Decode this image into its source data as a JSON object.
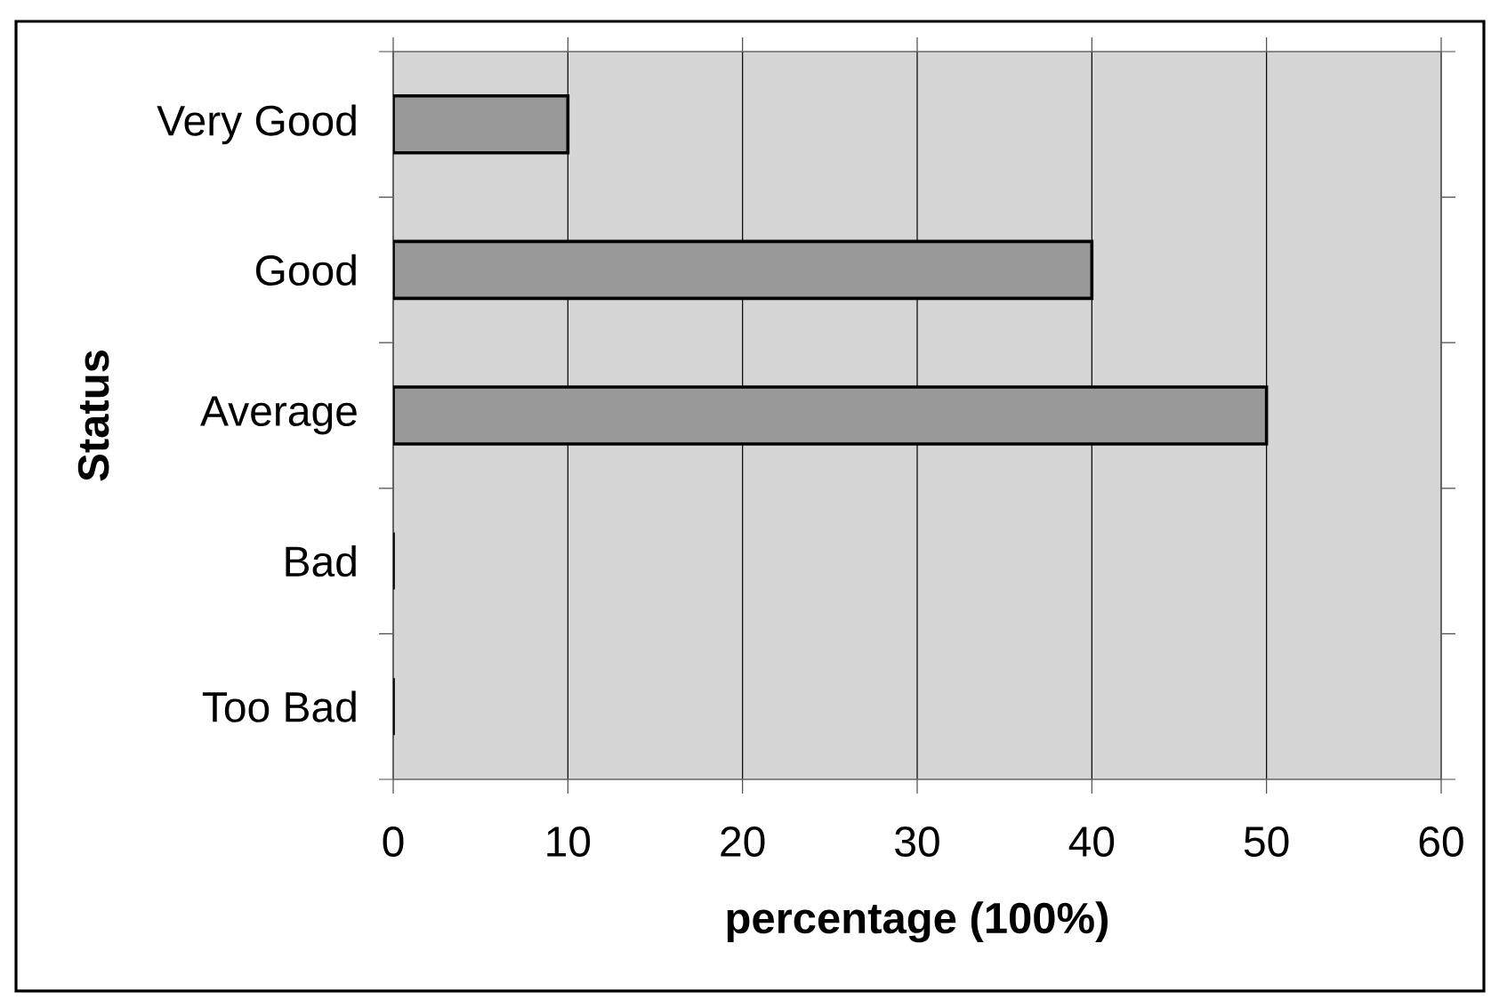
{
  "chart_data": {
    "type": "bar",
    "orientation": "horizontal",
    "categories": [
      "Very Good",
      "Good",
      "Average",
      "Bad",
      "Too Bad"
    ],
    "values": [
      10,
      40,
      50,
      0,
      0
    ],
    "color": "#999999",
    "xlabel": "percentage (100%)",
    "ylabel": "Status",
    "xlim": [
      0,
      60
    ],
    "xticks": [
      0,
      10,
      20,
      30,
      40,
      50,
      60
    ],
    "grid": "x"
  }
}
